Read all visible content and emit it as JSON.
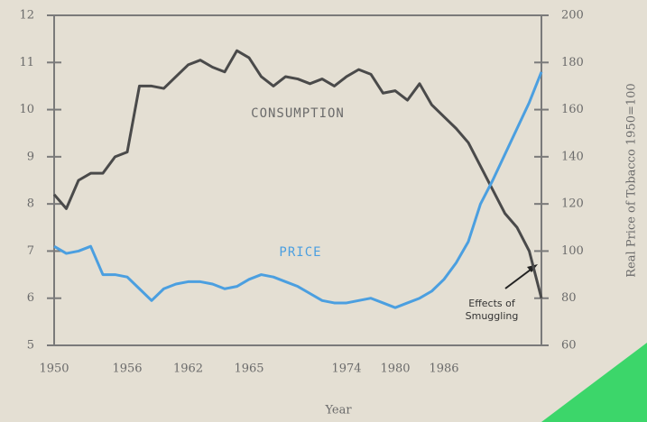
{
  "chart_data": {
    "type": "line",
    "categories": [
      "1950",
      null,
      null,
      null,
      null,
      null,
      "1956",
      null,
      null,
      null,
      null,
      "1962",
      null,
      null,
      null,
      null,
      "1965",
      null,
      null,
      null,
      null,
      null,
      null,
      null,
      "1974",
      null,
      null,
      null,
      "1980",
      null,
      null,
      null,
      "1986",
      null,
      null,
      null,
      null,
      null,
      null,
      null,
      null
    ],
    "series": [
      {
        "name": "CONSUMPTION",
        "color": "#4a4a4a",
        "axis": "y",
        "values": [
          8.2,
          7.9,
          8.5,
          8.65,
          8.65,
          9.0,
          9.1,
          10.5,
          10.5,
          10.45,
          10.7,
          10.95,
          11.05,
          10.9,
          10.8,
          11.25,
          11.1,
          10.7,
          10.5,
          10.7,
          10.65,
          10.55,
          10.65,
          10.5,
          10.7,
          10.85,
          10.75,
          10.35,
          10.4,
          10.2,
          10.55,
          10.1,
          9.85,
          9.6,
          9.3,
          8.8,
          8.3,
          7.8,
          7.5,
          7.0,
          6.0
        ]
      },
      {
        "name": "PRICE",
        "color": "#4b9fe0",
        "axis": "y2",
        "values": [
          102,
          99,
          100,
          102,
          90,
          90,
          89,
          84,
          79,
          84,
          86,
          87,
          87,
          86,
          84,
          85,
          88,
          90,
          89,
          87,
          85,
          82,
          79,
          78,
          78,
          79,
          80,
          78,
          76,
          78,
          80,
          83,
          88,
          95,
          104,
          120,
          130,
          141,
          152,
          163,
          176
        ]
      }
    ],
    "ylim": [
      5,
      12
    ],
    "yticks": [
      5,
      6,
      7,
      8,
      9,
      10,
      11,
      12
    ],
    "y2lim": [
      60,
      200
    ],
    "y2ticks": [
      60,
      80,
      100,
      120,
      140,
      160,
      180,
      200
    ],
    "xlabel": "Year",
    "y2label": "Real Price of Tobacco 1950=100",
    "annotation": [
      "Effects of",
      "Smuggling"
    ]
  }
}
